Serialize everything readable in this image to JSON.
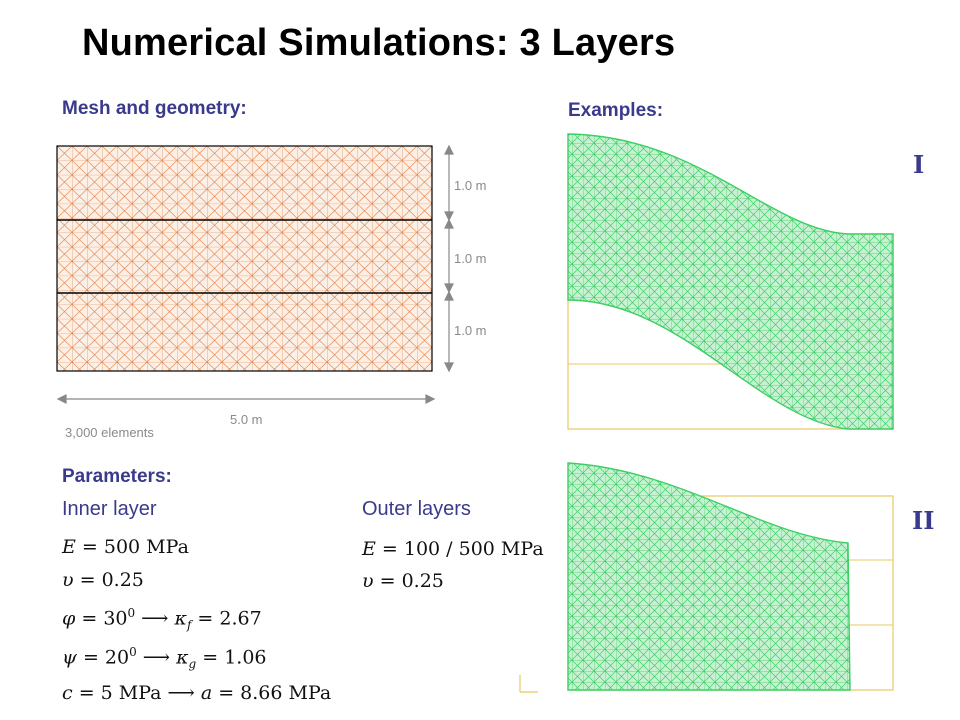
{
  "title": "Numerical Simulations: 3 Layers",
  "mesh_heading": "Mesh and geometry:",
  "examples_heading": "Examples:",
  "layer_dims": [
    "1.0 m",
    "1.0 m",
    "1.0 m"
  ],
  "width_dim": "5.0 m",
  "elements_count": "3,000 elements",
  "params_heading": "Parameters:",
  "inner_heading": "Inner layer",
  "outer_heading": "Outer layers",
  "inner_params": {
    "E_lhs": "E",
    "E_rhs": "= 500 MPa",
    "nu_lhs": "υ",
    "nu_rhs": "= 0.25",
    "phi_lhs": "φ",
    "phi_val": "= 30",
    "phi_exp": "0",
    "phi_arrow": " ⟶ ",
    "kf_sym": "κ",
    "kf_sub": "f",
    "kf_val": " = 2.67",
    "psi_lhs": "ψ",
    "psi_val": "= 20",
    "psi_exp": "0",
    "psi_arrow": " ⟶ ",
    "kg_sym": "κ",
    "kg_sub": "g",
    "kg_val": " = 1.06",
    "c_lhs": "c",
    "c_val": "= 5 MPa",
    "c_arrow": " ⟶ ",
    "a_sym": "a",
    "a_val": " = 8.66 MPa"
  },
  "outer_params": {
    "E_lhs": "E",
    "E_rhs": "= 100 / 500 MPa",
    "nu_lhs": "υ",
    "nu_rhs": "= 0.25"
  },
  "example_labels": [
    "I",
    "II"
  ],
  "colors": {
    "mesh": "#e07a3c",
    "deformed_mesh": "#3ccf63",
    "reference_outline": "#e8c860",
    "heading": "#3a3a8c"
  }
}
